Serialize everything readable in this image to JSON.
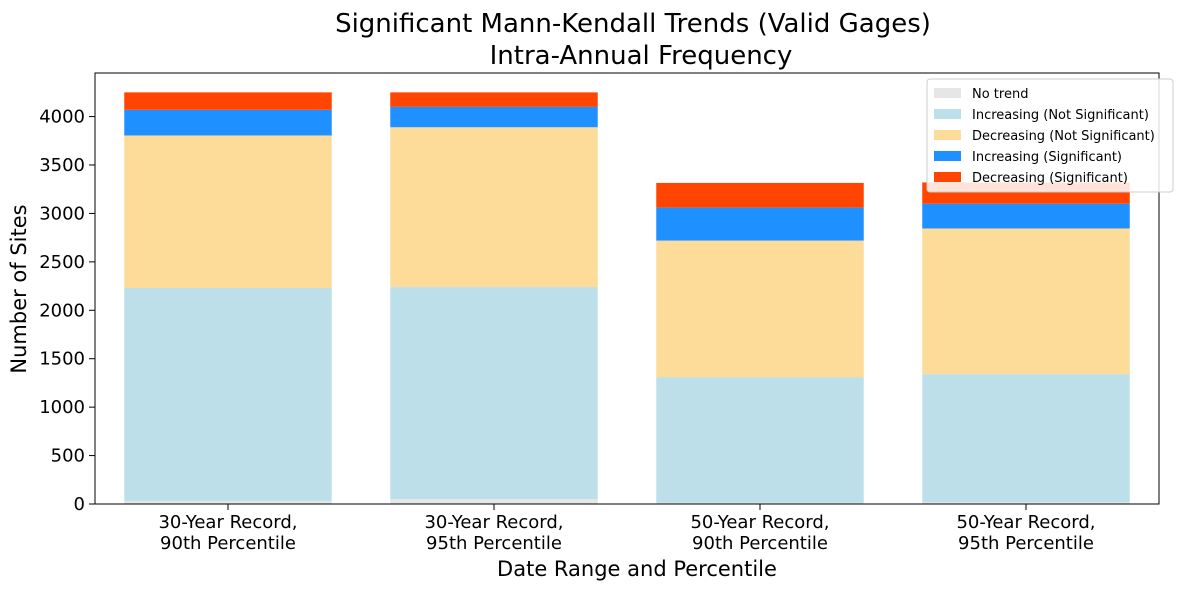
{
  "chart_data": {
    "type": "bar",
    "stacked": true,
    "title": [
      "Significant Mann-Kendall Trends (Valid Gages)",
      "Intra-Annual Frequency"
    ],
    "xlabel": "Date Range and Percentile",
    "ylabel": "Number of Sites",
    "categories": [
      [
        "30-Year Record,",
        "90th Percentile"
      ],
      [
        "30-Year Record,",
        "95th Percentile"
      ],
      [
        "50-Year Record,",
        "90th Percentile"
      ],
      [
        "50-Year Record,",
        "95th Percentile"
      ]
    ],
    "ylim": [
      0,
      4450
    ],
    "yticks": [
      0,
      500,
      1000,
      1500,
      2000,
      2500,
      3000,
      3500,
      4000
    ],
    "grid": false,
    "legend_position": "top-right",
    "series": [
      {
        "name": "No trend",
        "color": "#e6e6e6",
        "values": [
          30,
          50,
          15,
          20
        ]
      },
      {
        "name": "Increasing (Not Significant)",
        "color": "#bcdfea",
        "values": [
          2200,
          2190,
          1295,
          1320
        ]
      },
      {
        "name": "Decreasing (Not Significant)",
        "color": "#fddb98",
        "values": [
          1575,
          1650,
          1410,
          1505
        ]
      },
      {
        "name": "Increasing (Significant)",
        "color": "#1f90ff",
        "values": [
          265,
          210,
          340,
          255
        ]
      },
      {
        "name": "Decreasing (Significant)",
        "color": "#ff4500",
        "values": [
          180,
          150,
          255,
          220
        ]
      }
    ]
  }
}
